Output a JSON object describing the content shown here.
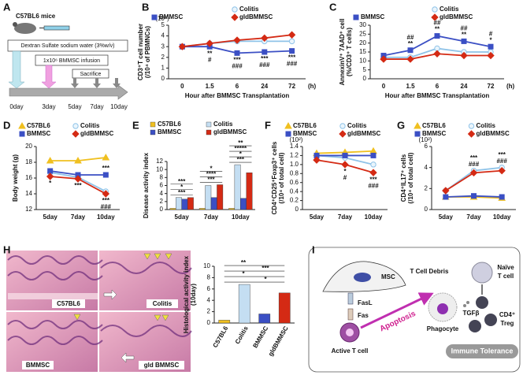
{
  "panel_labels": [
    "A",
    "B",
    "C",
    "D",
    "E",
    "F",
    "G",
    "H",
    "I"
  ],
  "panel_a": {
    "mouse": "C57BL6 mice",
    "dss": "Dextran Sulfate sodium water (3%w/v)",
    "infusion": "1x10⁶ BMMSC infusion",
    "sacrifice": "Sacrifice",
    "days": [
      "0day",
      "3day",
      "5day",
      "7day",
      "10day"
    ]
  },
  "panel_h_images": [
    "C57BL6",
    "Colitis",
    "BMMSC",
    "gld BMMSC"
  ],
  "panel_i": {
    "msc": "MSC",
    "fasl": "FasL",
    "fas": "Fas",
    "active": "Active T cell",
    "apoptosis": "Apoptosis",
    "debris": "T Cell Debris",
    "phagocyte": "Phagocyte",
    "tgf": "TGFβ",
    "naive": [
      "Naïve",
      "T cell"
    ],
    "treg": [
      "CD4⁺",
      "Treg"
    ],
    "tolerance": "Immune Tolerance"
  },
  "chart_data": [
    {
      "type": "line",
      "y_unit": "(10⁵)",
      "ylabel": [
        "CD3⁺T cell number",
        "(/10⁴ of PBMNCs)"
      ],
      "xlabel": "Hour after BMMSC Transplantation",
      "x_unit": "(h)",
      "categories": [
        "0",
        "1.5",
        "6",
        "24",
        "72"
      ],
      "ylim": [
        0,
        5
      ],
      "yticks": [
        0,
        1,
        2,
        3,
        4,
        5
      ],
      "series": [
        {
          "name": "Colitis",
          "color": "#8fc3e8",
          "marker": "circle",
          "values": [
            3.0,
            3.3,
            3.5,
            3.5,
            3.5
          ]
        },
        {
          "name": "BMMSC",
          "color": "#3b4fc4",
          "marker": "square",
          "values": [
            3.0,
            3.0,
            2.4,
            2.5,
            2.6
          ]
        },
        {
          "name": "gldBMMSC",
          "color": "#d42a14",
          "marker": "diamond",
          "values": [
            3.0,
            3.3,
            3.6,
            3.8,
            4.1
          ]
        }
      ],
      "annotations": [
        {
          "category": 1,
          "series": 1,
          "text": [
            "**",
            "#"
          ]
        },
        {
          "category": 2,
          "series": 1,
          "text": [
            "***",
            "###"
          ]
        },
        {
          "category": 3,
          "series": 1,
          "text": [
            "***",
            "###"
          ]
        },
        {
          "category": 4,
          "series": 1,
          "text": [
            "***",
            "###"
          ]
        }
      ]
    },
    {
      "type": "line",
      "ylabel": [
        "AnnexinV⁺ 7AAD⁺ cell",
        "(%/CD3⁺ T cells)"
      ],
      "xlabel": "Hour after BMMSC Transplantation",
      "x_unit": "(h)",
      "categories": [
        "0",
        "1.5",
        "6",
        "24",
        "72"
      ],
      "ylim": [
        0,
        30
      ],
      "yticks": [
        0,
        5,
        10,
        15,
        20,
        25,
        30
      ],
      "series": [
        {
          "name": "Colitis",
          "color": "#8fc3e8",
          "marker": "circle",
          "values": [
            12,
            12,
            17,
            15,
            15
          ]
        },
        {
          "name": "BMMSC",
          "color": "#3b4fc4",
          "marker": "square",
          "values": [
            13,
            16,
            24,
            21,
            18
          ]
        },
        {
          "name": "gldBMMSC",
          "color": "#d42a14",
          "marker": "diamond",
          "values": [
            11,
            11,
            14,
            13,
            13
          ]
        }
      ],
      "annotations": [
        {
          "category": 1,
          "series": 1,
          "text": [
            "##",
            "**"
          ]
        },
        {
          "category": 2,
          "series": 1,
          "text": [
            "##",
            "**"
          ]
        },
        {
          "category": 3,
          "series": 1,
          "text": [
            "##",
            "**"
          ]
        },
        {
          "category": 4,
          "series": 1,
          "text": [
            "#",
            "*"
          ]
        }
      ]
    },
    {
      "type": "line",
      "ylabel": [
        "Body weight (g)"
      ],
      "categories": [
        "5day",
        "7day",
        "10day"
      ],
      "ylim": [
        12,
        20
      ],
      "yticks": [
        12,
        14,
        16,
        18,
        20
      ],
      "series": [
        {
          "name": "C57BL6",
          "color": "#f0c020",
          "marker": "triangle",
          "values": [
            18.2,
            18.2,
            18.6
          ]
        },
        {
          "name": "Colitis",
          "color": "#8fc3e8",
          "marker": "circle",
          "values": [
            16.7,
            16.1,
            14.3
          ]
        },
        {
          "name": "BMMSC",
          "color": "#3b4fc4",
          "marker": "square",
          "values": [
            16.9,
            16.4,
            16.4
          ]
        },
        {
          "name": "gldBMMSC",
          "color": "#d42a14",
          "marker": "diamond",
          "values": [
            16.2,
            15.9,
            14.0
          ]
        }
      ],
      "annotations": [
        {
          "category": 0,
          "series": 3,
          "text": [
            "*"
          ]
        },
        {
          "category": 1,
          "series": 3,
          "text": [
            "***"
          ]
        },
        {
          "category": 2,
          "series": 2,
          "text": [
            "***"
          ]
        },
        {
          "category": 2,
          "series": 3,
          "text": [
            "***",
            "###"
          ]
        }
      ]
    },
    {
      "type": "bar",
      "ylabel": [
        "Disease activity index"
      ],
      "categories": [
        "5day",
        "7day",
        "10day"
      ],
      "ylim": [
        0,
        12
      ],
      "yticks": [
        0,
        2,
        4,
        6,
        8,
        10,
        12
      ],
      "series": [
        {
          "name": "C57BL6",
          "color": "#f0c020",
          "values": [
            0.3,
            0.3,
            0.3
          ]
        },
        {
          "name": "Colitis",
          "color": "#c4def2",
          "values": [
            3.0,
            6.0,
            11.2
          ]
        },
        {
          "name": "BMMSC",
          "color": "#3b4fc4",
          "values": [
            2.6,
            3.0,
            2.8
          ]
        },
        {
          "name": "gldBMMSC",
          "color": "#d42a14",
          "values": [
            3.0,
            6.2,
            9.2
          ]
        }
      ],
      "annotations": [
        {
          "category": 0,
          "text": [
            "***",
            "*",
            "***"
          ]
        },
        {
          "category": 1,
          "text": [
            "***",
            "****",
            "*"
          ]
        },
        {
          "category": 2,
          "text": [
            "***",
            "*",
            "*****",
            "**"
          ]
        }
      ]
    },
    {
      "type": "line",
      "y_unit": "(10²)",
      "ylabel": [
        "CD4⁺CD25⁺Foxp3⁺ cells",
        "(/10⁴ of total cell)"
      ],
      "categories": [
        "5day",
        "7day",
        "10day"
      ],
      "ylim": [
        0,
        1.4
      ],
      "yticks": [
        0,
        0.2,
        0.4,
        0.6,
        0.8,
        {
          "value": 1,
          "label": "1.0"
        },
        1.2,
        1.4
      ],
      "series": [
        {
          "name": "C57BL6",
          "color": "#f0c020",
          "marker": "triangle",
          "values": [
            1.25,
            1.27,
            1.3
          ]
        },
        {
          "name": "Colitis",
          "color": "#8fc3e8",
          "marker": "circle",
          "values": [
            1.2,
            1.15,
            1.0
          ]
        },
        {
          "name": "BMMSC",
          "color": "#3b4fc4",
          "marker": "square",
          "values": [
            1.2,
            1.2,
            1.2
          ]
        },
        {
          "name": "gldBMMSC",
          "color": "#d42a14",
          "marker": "diamond",
          "values": [
            1.1,
            1.0,
            0.82
          ]
        }
      ],
      "annotations": [
        {
          "category": 1,
          "series": 3,
          "text": [
            "*",
            "#"
          ]
        },
        {
          "category": 2,
          "series": 3,
          "text": [
            "***",
            "###"
          ]
        }
      ]
    },
    {
      "type": "line",
      "y_unit": "(10²)",
      "ylabel": [
        "CD4⁺IL17⁺ cells",
        "(/10⁴ of total cell)"
      ],
      "categories": [
        "5day",
        "7day",
        "10day"
      ],
      "ylim": [
        0,
        6
      ],
      "yticks": [
        0,
        2,
        4,
        6
      ],
      "series": [
        {
          "name": "C57BL6",
          "color": "#f0c020",
          "marker": "triangle",
          "values": [
            1.2,
            1.2,
            1.1
          ]
        },
        {
          "name": "Colitis",
          "color": "#8fc3e8",
          "marker": "circle",
          "values": [
            1.8,
            3.7,
            4.0
          ]
        },
        {
          "name": "BMMSC",
          "color": "#3b4fc4",
          "marker": "square",
          "values": [
            1.2,
            1.3,
            1.2
          ]
        },
        {
          "name": "gldBMMSC",
          "color": "#d42a14",
          "marker": "diamond",
          "values": [
            1.8,
            3.5,
            3.7
          ]
        }
      ],
      "annotations": [
        {
          "category": 1,
          "series": 1,
          "text": [
            "***",
            "###"
          ]
        },
        {
          "category": 2,
          "series": 1,
          "text": [
            "***",
            "###"
          ]
        }
      ]
    },
    {
      "type": "bar",
      "ylabel": [
        "Histological activity index",
        "(10day)"
      ],
      "categories": [
        "C57BL6",
        "Colitis",
        "BMMSC",
        "gldBMMSC"
      ],
      "values": [
        0.5,
        6.8,
        1.6,
        5.3
      ],
      "colors": [
        "#f0c020",
        "#c4def2",
        "#3b4fc4",
        "#d42a14"
      ],
      "ylim": [
        0,
        10
      ],
      "yticks": [
        0,
        2,
        4,
        6,
        8,
        10
      ],
      "annotations": [
        {
          "text": [
            "**",
            "***",
            "*",
            "*"
          ]
        }
      ]
    }
  ]
}
